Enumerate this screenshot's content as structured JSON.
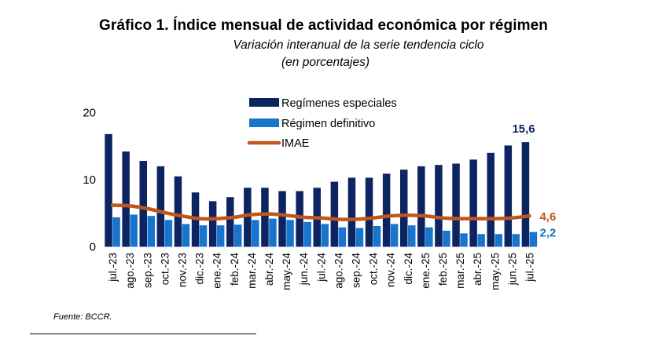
{
  "header": {
    "title": "Gráfico 1. Índice mensual de actividad económica por régimen",
    "subtitle_line1": "Variación interanual de la serie tendencia ciclo",
    "subtitle_line2": "(en porcentajes)"
  },
  "footer": {
    "source": "Fuente:  BCCR."
  },
  "chart_data": {
    "type": "bar",
    "categories": [
      "jul.-23",
      "ago.-23",
      "sep.-23",
      "oct.-23",
      "nov.-23",
      "dic.-23",
      "ene.-24",
      "feb.-24",
      "mar.-24",
      "abr.-24",
      "may.-24",
      "jun.-24",
      "jul.-24",
      "ago.-24",
      "sep.-24",
      "oct.-24",
      "nov.-24",
      "dic.-24",
      "ene.-25",
      "feb.-25",
      "mar.-25",
      "abr.-25",
      "may.-25",
      "jun.-25",
      "jul.-25"
    ],
    "series": [
      {
        "name": "Regímenes especiales",
        "kind": "bar",
        "color": "#0c2461",
        "values": [
          16.8,
          14.2,
          12.8,
          12.0,
          10.5,
          8.1,
          6.8,
          7.4,
          8.8,
          8.8,
          8.3,
          8.3,
          8.8,
          9.7,
          10.3,
          10.3,
          10.9,
          11.5,
          12.0,
          12.2,
          12.4,
          13.0,
          14.0,
          15.1,
          15.6
        ]
      },
      {
        "name": "Régimen definitivo",
        "kind": "bar",
        "color": "#1874cd",
        "values": [
          4.4,
          4.8,
          4.6,
          4.0,
          3.4,
          3.2,
          3.2,
          3.3,
          4.0,
          4.2,
          4.0,
          3.7,
          3.4,
          2.9,
          2.8,
          3.1,
          3.4,
          3.2,
          2.9,
          2.4,
          2.0,
          1.9,
          1.9,
          1.9,
          2.2
        ]
      },
      {
        "name": "IMAE",
        "kind": "line",
        "color": "#c0561a",
        "values": [
          6.2,
          6.1,
          5.7,
          5.1,
          4.6,
          4.2,
          4.2,
          4.4,
          4.8,
          4.9,
          4.7,
          4.4,
          4.3,
          4.1,
          4.1,
          4.3,
          4.6,
          4.7,
          4.6,
          4.3,
          4.2,
          4.2,
          4.2,
          4.3,
          4.6
        ]
      }
    ],
    "ylim": [
      0,
      20
    ],
    "yticks": [
      0,
      10,
      20
    ],
    "grid": false,
    "legend_position": "top-center",
    "end_labels": [
      {
        "series": "Regímenes especiales",
        "text": "15,6",
        "color": "#0c2461"
      },
      {
        "series": "IMAE",
        "text": "4,6",
        "color": "#c0561a"
      },
      {
        "series": "Régimen definitivo",
        "text": "2,2",
        "color": "#1874cd"
      }
    ]
  }
}
